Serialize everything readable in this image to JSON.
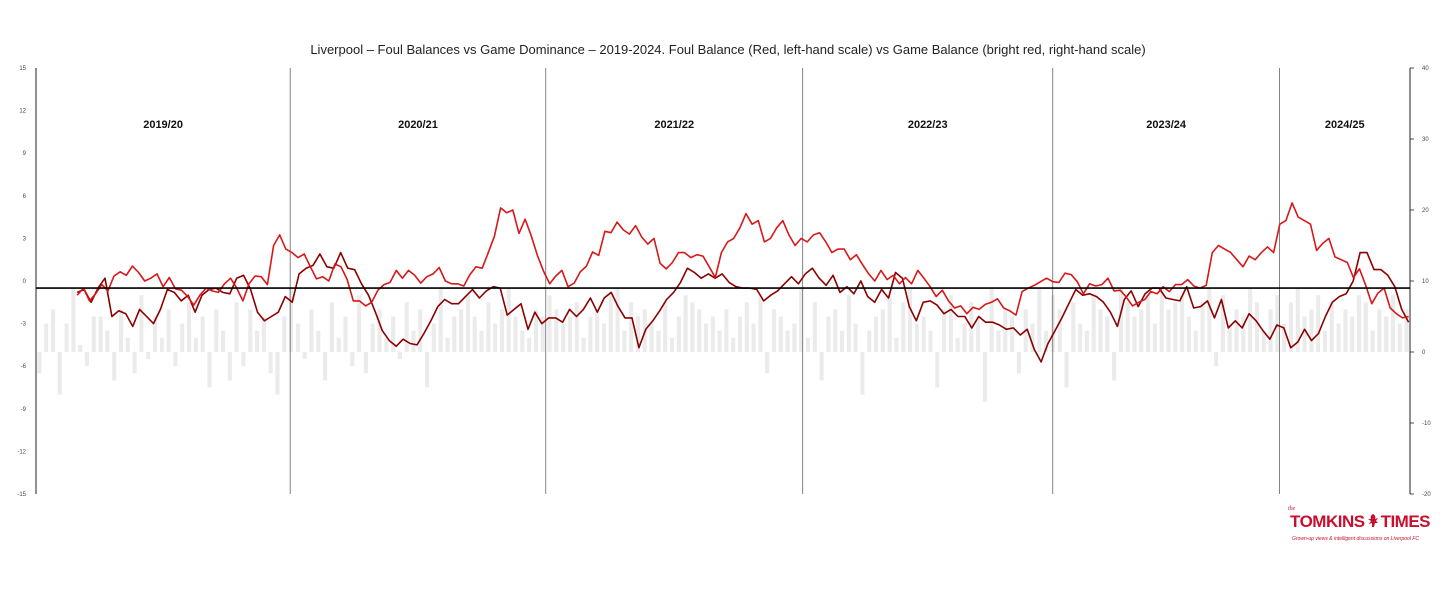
{
  "chart_data": {
    "type": "line",
    "title": "Liverpool – Foul Balances vs Game Dominance – 2019-2024. Foul Balance (Red, left-hand scale) vs Game Balance (bright red, right-hand scale)",
    "left_axis": {
      "ticks": [
        15,
        12,
        9,
        6,
        3,
        0,
        -3,
        -6,
        -9,
        -12,
        -15
      ],
      "range": [
        -15,
        15
      ]
    },
    "right_axis": {
      "ticks": [
        40,
        30,
        20,
        10,
        0,
        -10,
        -20
      ],
      "range": [
        -20,
        40
      ]
    },
    "seasons": [
      {
        "label": "2019/20",
        "start": 0.0
      },
      {
        "label": "2020/21",
        "start": 0.185
      },
      {
        "label": "2021/22",
        "start": 0.371
      },
      {
        "label": "2022/23",
        "start": 0.558
      },
      {
        "label": "2023/24",
        "start": 0.74
      },
      {
        "label": "2024/25",
        "start": 0.905
      }
    ],
    "zero_line_right_scale": 9,
    "series": [
      {
        "name": "Foul Balance",
        "axis": "left",
        "color": "#8b0000",
        "values": [
          -0.8,
          -0.6,
          -1.5,
          -0.5,
          0.2,
          -2.5,
          -2.1,
          -2.3,
          -3.2,
          -2.0,
          -2.5,
          -3.0,
          -2.0,
          -0.6,
          -0.8,
          -1.4,
          -1.0,
          -2.2,
          -1.0,
          -0.6,
          -0.5,
          -0.8,
          -0.9,
          0.2,
          0.4,
          -0.6,
          -2.2,
          -2.8,
          -2.5,
          -2.2,
          -1.1,
          -1.5,
          0.5,
          0.9,
          1.1,
          1.9,
          1.0,
          0.9,
          2.0,
          0.9,
          0.8,
          -0.2,
          -1.0,
          -2.2,
          -3.5,
          -4.2,
          -4.6,
          -4.1,
          -4.4,
          -4.5,
          -3.7,
          -2.8,
          -1.8,
          -1.3,
          -1.6,
          -1.6,
          -1.1,
          -0.6,
          -1.2,
          -0.7,
          -0.4,
          -0.5,
          -2.4,
          -2.0,
          -1.6,
          -3.4,
          -2.2,
          -3.0,
          -2.6,
          -2.6,
          -2.9,
          -2.0,
          -2.5,
          -2.0,
          -1.2,
          -2.2,
          -1.2,
          -0.8,
          -1.8,
          -2.6,
          -2.6,
          -4.7,
          -3.4,
          -2.8,
          -2.1,
          -1.3,
          -0.8,
          -0.1,
          0.9,
          0.6,
          0.2,
          0.5,
          0.2,
          0.5,
          -0.1,
          -0.4,
          -0.5,
          -0.5,
          -0.6,
          -1.4,
          -1.0,
          -0.7,
          -0.2,
          0.3,
          -0.2,
          0.5,
          0.9,
          0.2,
          -0.3,
          0.4,
          -0.8,
          -0.4,
          -0.9,
          0.0,
          -1.1,
          -1.5,
          -0.6,
          -1.2,
          0.6,
          0.2,
          -1.8,
          -2.8,
          -1.5,
          -1.4,
          -1.7,
          -2.3,
          -2.0,
          -2.5,
          -2.5,
          -3.3,
          -2.5,
          -2.9,
          -2.9,
          -3.1,
          -3.4,
          -3.3,
          -3.8,
          -3.4,
          -4.8,
          -5.7,
          -4.4,
          -3.5,
          -2.6,
          -1.6,
          -0.6,
          -1.0,
          -0.9,
          -1.1,
          -1.5,
          -2.2,
          -3.2,
          -1.3,
          -0.7,
          -1.8,
          -0.9,
          -0.5,
          -0.5,
          -1.2,
          -1.3,
          -1.4,
          -0.4,
          -1.9,
          -1.8,
          -1.4,
          -2.6,
          -1.3,
          -3.3,
          -2.8,
          -3.3,
          -2.3,
          -2.8,
          -3.5,
          -4.1,
          -3.1,
          -3.3,
          -4.7,
          -4.3,
          -3.4,
          -4.2,
          -3.7,
          -2.5,
          -1.5,
          -1.1,
          -0.9,
          0.0,
          2.0,
          2.0,
          0.8,
          0.8,
          0.4,
          -0.4,
          -2.0,
          -2.9
        ]
      },
      {
        "name": "Game Balance",
        "axis": "right",
        "color": "#d81818",
        "values": [
          8.0,
          9.0,
          7.2,
          8.2,
          9.5,
          8.6,
          10.7,
          11.3,
          10.8,
          12.1,
          11.2,
          10.0,
          10.4,
          11.0,
          9.2,
          10.5,
          8.9,
          8.7,
          7.8,
          6.6,
          8.0,
          9.0,
          8.6,
          8.4,
          9.6,
          10.4,
          9.0,
          7.2,
          9.6,
          10.7,
          10.6,
          9.5,
          15.0,
          16.5,
          14.5,
          14.0,
          13.3,
          13.8,
          12.0,
          10.3,
          10.6,
          10.0,
          12.4,
          12.0,
          10.2,
          7.2,
          7.2,
          6.5,
          7.0,
          8.7,
          9.5,
          9.8,
          11.5,
          10.4,
          11.5,
          10.8,
          9.7,
          10.6,
          11.0,
          11.9,
          10.0,
          9.6,
          9.6,
          9.3,
          10.9,
          12.0,
          11.8,
          14.0,
          16.3,
          20.3,
          19.6,
          20.0,
          16.7,
          18.7,
          16.4,
          13.6,
          11.4,
          9.6,
          10.7,
          11.5,
          9.2,
          9.7,
          11.3,
          12.1,
          14.1,
          13.6,
          17.0,
          16.8,
          18.3,
          17.2,
          16.6,
          17.8,
          16.2,
          15.2,
          16.0,
          12.5,
          11.7,
          12.6,
          14.0,
          14.0,
          13.3,
          13.7,
          13.5,
          12.0,
          10.5,
          14.0,
          15.5,
          16.0,
          17.5,
          19.5,
          18.0,
          18.5,
          15.5,
          16.0,
          17.5,
          18.5,
          16.5,
          15.0,
          16.0,
          15.5,
          16.5,
          16.8,
          15.5,
          14.0,
          14.5,
          14.5,
          13.0,
          13.7,
          12.3,
          11.0,
          10.0,
          11.5,
          10.2,
          10.8,
          9.6,
          10.5,
          9.6,
          11.5,
          10.4,
          9.2,
          7.8,
          8.7,
          7.2,
          6.2,
          6.5,
          5.4,
          6.3,
          6.0,
          6.7,
          7.0,
          7.5,
          6.2,
          5.8,
          5.2,
          8.5,
          9.0,
          9.4,
          9.9,
          10.4,
          9.9,
          9.8,
          11.1,
          10.9,
          9.9,
          8.2,
          9.6,
          9.3,
          9.5,
          10.4,
          8.6,
          8.7,
          7.7,
          6.5,
          7.0,
          7.4,
          8.5,
          8.2,
          9.2,
          8.5,
          9.5,
          9.5,
          10.2,
          9.3,
          9.0,
          9.4,
          14.0,
          15.0,
          14.5,
          14.0,
          13.0,
          12.0,
          13.5,
          13.0,
          14.0,
          14.8,
          14.0,
          18.0,
          18.5,
          21.0,
          19.0,
          18.5,
          18.0,
          14.3,
          15.3,
          16.0,
          13.4,
          13.0,
          12.6,
          10.5,
          11.7,
          9.4,
          6.8,
          8.3,
          9.0,
          6.2,
          5.4,
          4.8,
          5.0
        ]
      }
    ],
    "background_bars_right_scale": [
      -3,
      4,
      6,
      -6,
      4,
      9,
      1,
      -2,
      5,
      5,
      3,
      -4,
      6,
      2,
      -3,
      8,
      -1,
      5,
      2,
      6,
      -2,
      4,
      7,
      2,
      5,
      -5,
      6,
      3,
      -4,
      7,
      -2,
      6,
      3,
      5,
      -3,
      -6,
      5,
      9,
      4,
      -1,
      6,
      3,
      -4,
      7,
      2,
      5,
      -2,
      8,
      -3,
      4,
      6,
      2,
      5,
      -1,
      7,
      3,
      6,
      -5,
      4,
      9,
      2,
      5,
      6,
      8,
      5,
      3,
      7,
      4,
      6,
      9,
      5,
      3,
      2,
      6,
      5,
      8,
      6,
      4,
      5,
      7,
      2,
      5,
      6,
      4,
      8,
      9,
      3,
      7,
      5,
      6,
      4,
      3,
      7,
      2,
      5,
      8,
      7,
      6,
      4,
      5,
      3,
      6,
      2,
      5,
      7,
      4,
      8,
      -3,
      6,
      5,
      3,
      4,
      9,
      2,
      7,
      -4,
      5,
      6,
      3,
      8,
      4,
      -6,
      3,
      5,
      6,
      8,
      2,
      7,
      9,
      4,
      5,
      3,
      -5,
      6,
      8,
      2,
      4,
      7,
      5,
      -7,
      9,
      3,
      6,
      5,
      -3,
      6,
      4,
      9,
      3,
      8,
      6,
      -5,
      7,
      4,
      3,
      8,
      6,
      5,
      -4,
      9,
      7,
      5,
      6,
      8,
      4,
      9,
      6,
      7,
      8,
      5,
      3,
      7,
      9,
      -2,
      8,
      4,
      6,
      5,
      9,
      7,
      3,
      6,
      8,
      4,
      7,
      9,
      5,
      6,
      8,
      3,
      7,
      4,
      6,
      5,
      8,
      7,
      3,
      6,
      5,
      8,
      4,
      6
    ]
  },
  "logo": {
    "small": "the",
    "main_left": "TOMKINS",
    "main_right": "TIMES",
    "tagline": "Grown-up views & intelligent discussions on Liverpool FC"
  }
}
